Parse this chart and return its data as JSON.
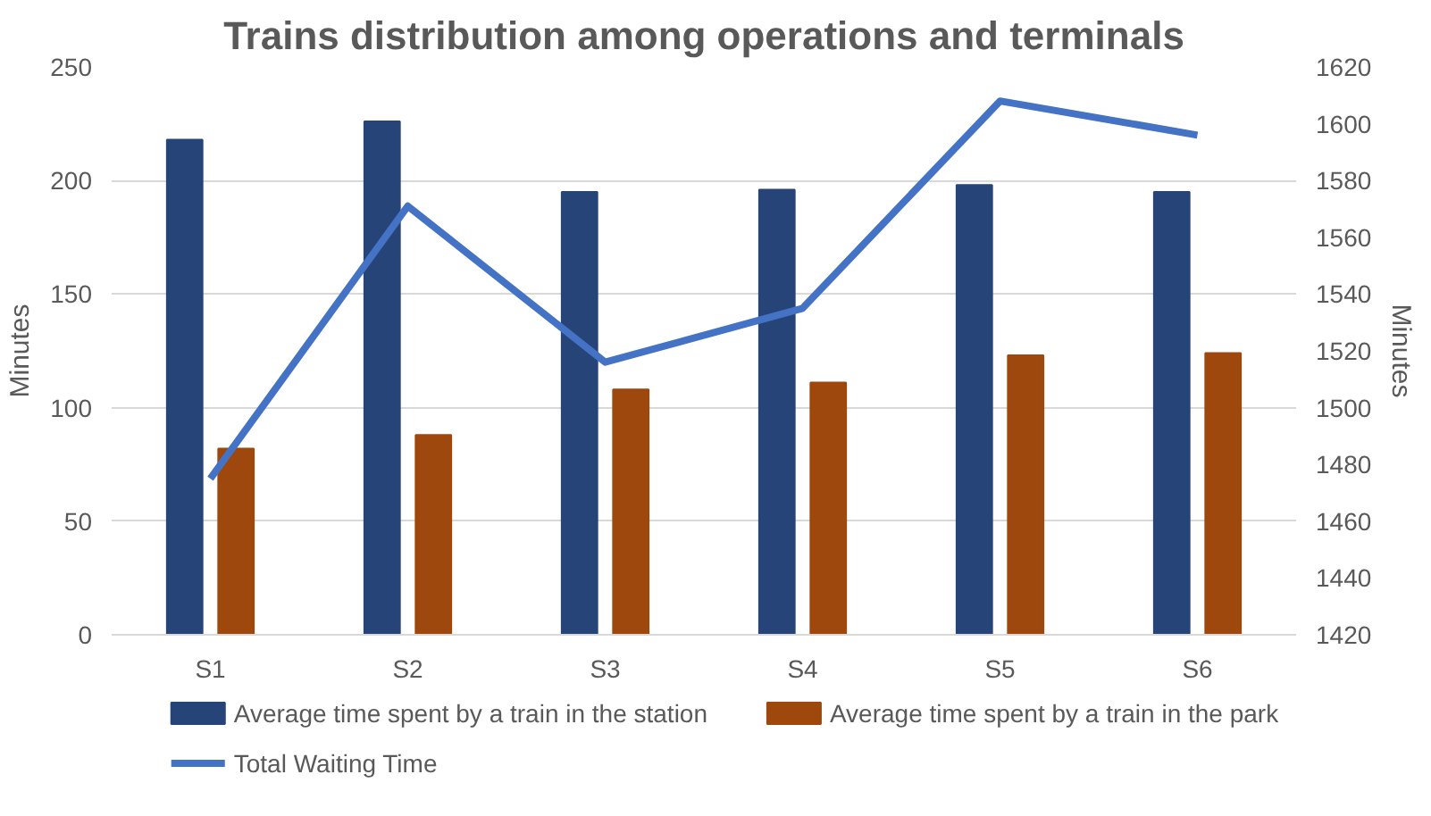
{
  "chart_data": {
    "type": "bar",
    "title": "Trains distribution among operations and terminals",
    "ylabel": "Minutes",
    "y2label": "Minutes",
    "categories": [
      "S1",
      "S2",
      "S3",
      "S4",
      "S5",
      "S6"
    ],
    "series": [
      {
        "name": "Average time  spent by a train in the station",
        "color": "#264478",
        "values": [
          218,
          226,
          195,
          196,
          198,
          195
        ]
      },
      {
        "name": "Average time spent by a train in the park",
        "color": "#9e480e",
        "values": [
          82,
          88,
          108,
          111,
          123,
          124
        ]
      },
      {
        "name": "Total Waiting Time",
        "type": "line",
        "axis": "y2",
        "color": "#4472c4",
        "values": [
          1475,
          1571,
          1516,
          1535,
          1608,
          1596
        ]
      }
    ],
    "ylim": [
      0,
      250
    ],
    "yticks": [
      0,
      50,
      100,
      150,
      200,
      250
    ],
    "y2lim": [
      1420,
      1620
    ],
    "y2ticks": [
      1420,
      1440,
      1460,
      1480,
      1500,
      1520,
      1540,
      1560,
      1580,
      1600,
      1620
    ],
    "grid": "y",
    "legend": "bottom"
  }
}
